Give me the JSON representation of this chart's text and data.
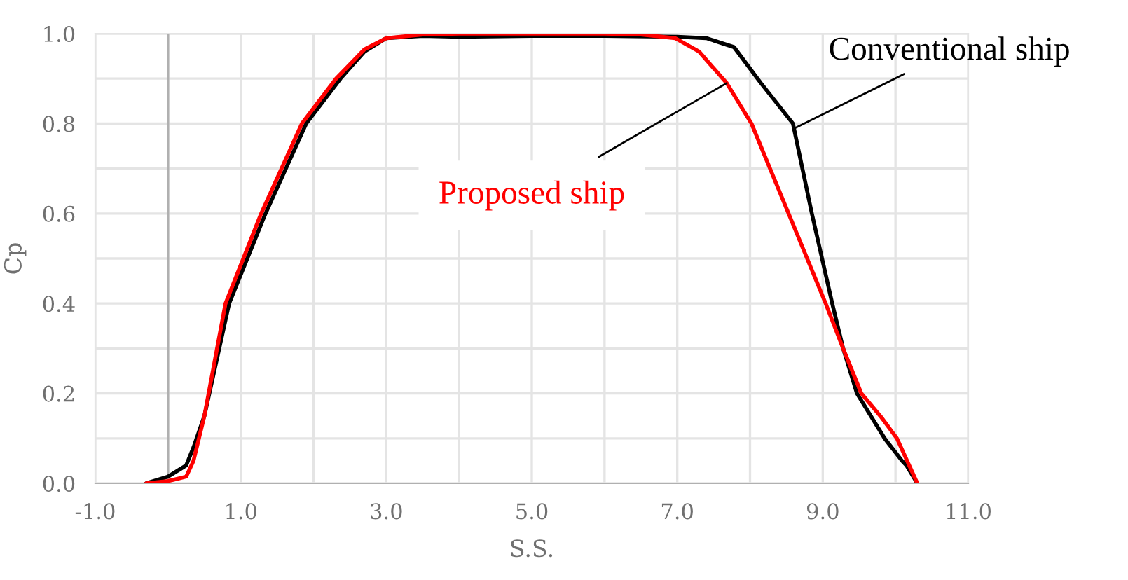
{
  "chart_data": {
    "type": "line",
    "xlabel": "S.S.",
    "ylabel": "Cp",
    "xlim": [
      -1,
      11
    ],
    "ylim": [
      0,
      1.0
    ],
    "xticks": [
      {
        "value": -1,
        "label": "-1.0"
      },
      {
        "value": 0,
        "label": null
      },
      {
        "value": 1,
        "label": "1.0"
      },
      {
        "value": 2,
        "label": null
      },
      {
        "value": 3,
        "label": "3.0"
      },
      {
        "value": 4,
        "label": null
      },
      {
        "value": 5,
        "label": "5.0"
      },
      {
        "value": 6,
        "label": null
      },
      {
        "value": 7,
        "label": "7.0"
      },
      {
        "value": 8,
        "label": null
      },
      {
        "value": 9,
        "label": "9.0"
      },
      {
        "value": 10,
        "label": null
      },
      {
        "value": 11,
        "label": "11.0"
      }
    ],
    "yticks": [
      {
        "value": 0,
        "label": "0.0"
      },
      {
        "value": 0.1,
        "label": null
      },
      {
        "value": 0.2,
        "label": "0.2"
      },
      {
        "value": 0.3,
        "label": null
      },
      {
        "value": 0.4,
        "label": "0.4"
      },
      {
        "value": 0.5,
        "label": null
      },
      {
        "value": 0.6,
        "label": "0.6"
      },
      {
        "value": 0.7,
        "label": null
      },
      {
        "value": 0.8,
        "label": "0.8"
      },
      {
        "value": 0.9,
        "label": null
      },
      {
        "value": 1.0,
        "label": "1.0"
      }
    ],
    "grid": true,
    "legend": false,
    "marker": "none",
    "line_style": "solid",
    "series": [
      {
        "color": "#000000",
        "x": [
          -0.3,
          0,
          0.25,
          0.35,
          0.5,
          0.84,
          1.34,
          1.9,
          2.37,
          2.7,
          3.0,
          3.5,
          4.0,
          5.0,
          6.0,
          7.0,
          7.4,
          7.78,
          8.15,
          8.59,
          8.85,
          9.13,
          9.28,
          9.47,
          9.85,
          10.09,
          10.15,
          10.3
        ],
        "values": [
          0,
          0.015,
          0.04,
          0.08,
          0.15,
          0.4,
          0.6,
          0.8,
          0.9,
          0.96,
          0.99,
          0.995,
          0.993,
          0.995,
          0.995,
          0.993,
          0.99,
          0.97,
          0.89,
          0.8,
          0.6,
          0.4,
          0.3,
          0.2,
          0.1,
          0.05,
          0.04,
          0
        ]
      },
      {
        "color": "#ff0000",
        "x": [
          -0.3,
          0,
          0.25,
          0.35,
          0.5,
          0.79,
          1.28,
          1.84,
          2.31,
          2.7,
          3.0,
          3.5,
          4.0,
          5.0,
          6.0,
          6.5,
          6.97,
          7.3,
          7.68,
          8.02,
          8.53,
          9.04,
          9.28,
          9.53,
          9.79,
          10.02,
          10.3
        ],
        "values": [
          0,
          0.005,
          0.015,
          0.05,
          0.15,
          0.4,
          0.6,
          0.8,
          0.9,
          0.965,
          0.99,
          0.998,
          1.0,
          1.0,
          1.0,
          0.998,
          0.99,
          0.96,
          0.89,
          0.8,
          0.6,
          0.4,
          0.3,
          0.2,
          0.15,
          0.1,
          0
        ]
      }
    ],
    "annotations": [
      {
        "text": "Conventional ship",
        "x": 8.62,
        "y": 0.79
      },
      {
        "text": "Proposed ship",
        "x": 7.68,
        "y": 0.89
      }
    ]
  }
}
